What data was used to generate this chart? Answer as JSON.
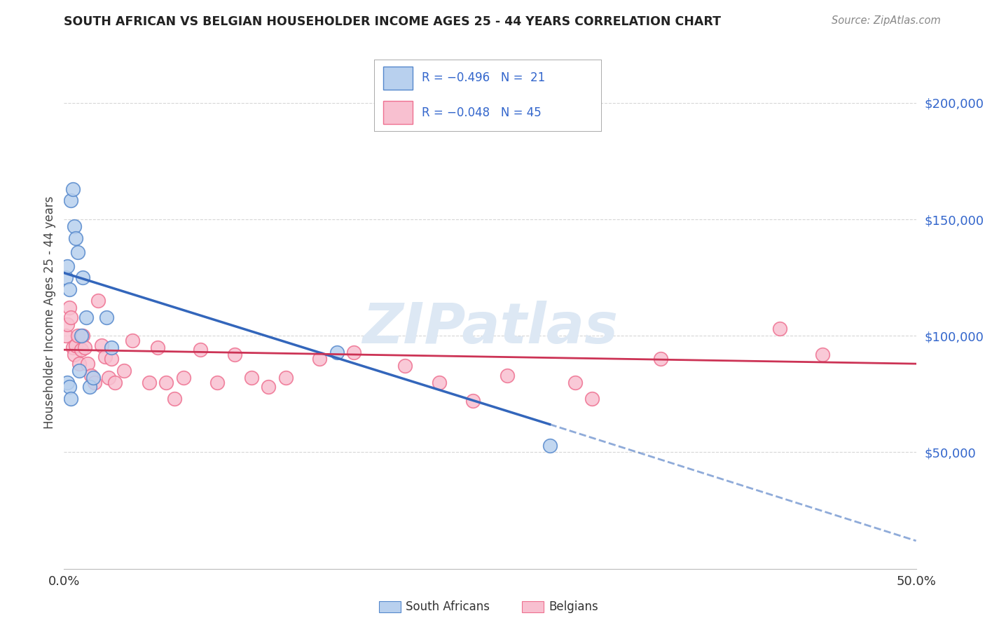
{
  "title": "SOUTH AFRICAN VS BELGIAN HOUSEHOLDER INCOME AGES 25 - 44 YEARS CORRELATION CHART",
  "source": "Source: ZipAtlas.com",
  "ylabel": "Householder Income Ages 25 - 44 years",
  "ytick_labels": [
    "$50,000",
    "$100,000",
    "$150,000",
    "$200,000"
  ],
  "ytick_values": [
    50000,
    100000,
    150000,
    200000
  ],
  "ylim": [
    0,
    220000
  ],
  "xlim": [
    0.0,
    0.5
  ],
  "sa_color": "#b8d0ee",
  "sa_edge_color": "#5588cc",
  "be_color": "#f8c0d0",
  "be_edge_color": "#ee7090",
  "blue_line_color": "#3366bb",
  "pink_line_color": "#cc3355",
  "watermark_color": "#dde8f4",
  "sa_x": [
    0.001,
    0.002,
    0.003,
    0.004,
    0.005,
    0.006,
    0.007,
    0.008,
    0.009,
    0.01,
    0.011,
    0.013,
    0.015,
    0.017,
    0.025,
    0.028,
    0.002,
    0.003,
    0.004,
    0.16,
    0.285
  ],
  "sa_y": [
    125000,
    130000,
    120000,
    158000,
    163000,
    147000,
    142000,
    136000,
    85000,
    100000,
    125000,
    108000,
    78000,
    82000,
    108000,
    95000,
    80000,
    78000,
    73000,
    93000,
    53000
  ],
  "be_x": [
    0.001,
    0.002,
    0.003,
    0.004,
    0.005,
    0.006,
    0.007,
    0.008,
    0.009,
    0.01,
    0.011,
    0.012,
    0.014,
    0.016,
    0.018,
    0.02,
    0.022,
    0.024,
    0.026,
    0.028,
    0.03,
    0.035,
    0.04,
    0.05,
    0.055,
    0.06,
    0.065,
    0.07,
    0.08,
    0.09,
    0.1,
    0.11,
    0.12,
    0.13,
    0.15,
    0.17,
    0.2,
    0.22,
    0.24,
    0.26,
    0.3,
    0.31,
    0.35,
    0.42,
    0.445
  ],
  "be_y": [
    100000,
    105000,
    112000,
    108000,
    95000,
    92000,
    96000,
    100000,
    88000,
    94000,
    100000,
    95000,
    88000,
    83000,
    80000,
    115000,
    96000,
    91000,
    82000,
    90000,
    80000,
    85000,
    98000,
    80000,
    95000,
    80000,
    73000,
    82000,
    94000,
    80000,
    92000,
    82000,
    78000,
    82000,
    90000,
    93000,
    87000,
    80000,
    72000,
    83000,
    80000,
    73000,
    90000,
    103000,
    92000
  ],
  "sa_line_x0": 0.0,
  "sa_line_y0": 127000,
  "sa_line_x1": 0.285,
  "sa_line_y1": 62000,
  "sa_line_xend": 0.5,
  "sa_line_yend": 12000,
  "be_line_x0": 0.0,
  "be_line_y0": 94000,
  "be_line_x1": 0.5,
  "be_line_y1": 88000
}
